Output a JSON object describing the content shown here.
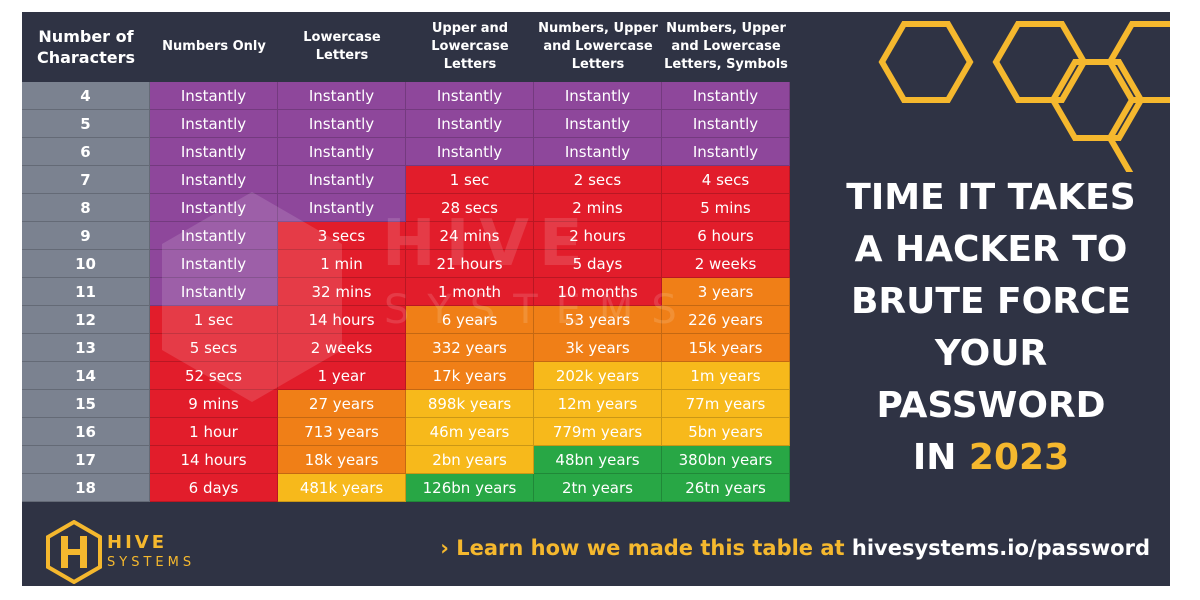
{
  "chart_data": {
    "type": "table",
    "title": "TIME IT TAKES A HACKER TO BRUTE FORCE YOUR PASSWORD IN 2023",
    "row_header": "Number of\nCharacters",
    "columns": [
      "Numbers Only",
      "Lowercase\nLetters",
      "Upper and\nLowercase\nLetters",
      "Numbers, Upper\nand Lowercase\nLetters",
      "Numbers, Upper\nand Lowercase\nLetters, Symbols"
    ],
    "rows": [
      {
        "label": "4",
        "values": [
          "Instantly",
          "Instantly",
          "Instantly",
          "Instantly",
          "Instantly"
        ],
        "levels": [
          "instant",
          "instant",
          "instant",
          "instant",
          "instant"
        ]
      },
      {
        "label": "5",
        "values": [
          "Instantly",
          "Instantly",
          "Instantly",
          "Instantly",
          "Instantly"
        ],
        "levels": [
          "instant",
          "instant",
          "instant",
          "instant",
          "instant"
        ]
      },
      {
        "label": "6",
        "values": [
          "Instantly",
          "Instantly",
          "Instantly",
          "Instantly",
          "Instantly"
        ],
        "levels": [
          "instant",
          "instant",
          "instant",
          "instant",
          "instant"
        ]
      },
      {
        "label": "7",
        "values": [
          "Instantly",
          "Instantly",
          "1 sec",
          "2 secs",
          "4 secs"
        ],
        "levels": [
          "instant",
          "instant",
          "red",
          "red",
          "red"
        ]
      },
      {
        "label": "8",
        "values": [
          "Instantly",
          "Instantly",
          "28 secs",
          "2 mins",
          "5 mins"
        ],
        "levels": [
          "instant",
          "instant",
          "red",
          "red",
          "red"
        ]
      },
      {
        "label": "9",
        "values": [
          "Instantly",
          "3 secs",
          "24 mins",
          "2 hours",
          "6 hours"
        ],
        "levels": [
          "instant",
          "red",
          "red",
          "red",
          "red"
        ]
      },
      {
        "label": "10",
        "values": [
          "Instantly",
          "1 min",
          "21 hours",
          "5 days",
          "2 weeks"
        ],
        "levels": [
          "instant",
          "red",
          "red",
          "red",
          "red"
        ]
      },
      {
        "label": "11",
        "values": [
          "Instantly",
          "32 mins",
          "1 month",
          "10 months",
          "3 years"
        ],
        "levels": [
          "instant",
          "red",
          "red",
          "red",
          "orange"
        ]
      },
      {
        "label": "12",
        "values": [
          "1 sec",
          "14 hours",
          "6 years",
          "53 years",
          "226 years"
        ],
        "levels": [
          "red",
          "red",
          "orange",
          "orange",
          "orange"
        ]
      },
      {
        "label": "13",
        "values": [
          "5 secs",
          "2 weeks",
          "332 years",
          "3k years",
          "15k years"
        ],
        "levels": [
          "red",
          "red",
          "orange",
          "orange",
          "orange"
        ]
      },
      {
        "label": "14",
        "values": [
          "52 secs",
          "1 year",
          "17k years",
          "202k years",
          "1m years"
        ],
        "levels": [
          "red",
          "red",
          "orange",
          "yellow",
          "yellow"
        ]
      },
      {
        "label": "15",
        "values": [
          "9 mins",
          "27 years",
          "898k years",
          "12m years",
          "77m years"
        ],
        "levels": [
          "red",
          "orange",
          "yellow",
          "yellow",
          "yellow"
        ]
      },
      {
        "label": "16",
        "values": [
          "1 hour",
          "713 years",
          "46m years",
          "779m years",
          "5bn years"
        ],
        "levels": [
          "red",
          "orange",
          "yellow",
          "yellow",
          "yellow"
        ]
      },
      {
        "label": "17",
        "values": [
          "14 hours",
          "18k years",
          "2bn years",
          "48bn years",
          "380bn years"
        ],
        "levels": [
          "red",
          "orange",
          "yellow",
          "green",
          "green"
        ]
      },
      {
        "label": "18",
        "values": [
          "6 days",
          "481k years",
          "126bn years",
          "2tn years",
          "26tn years"
        ],
        "levels": [
          "red",
          "yellow",
          "green",
          "green",
          "green"
        ]
      }
    ]
  },
  "level_colors": {
    "instant": "#8e479b",
    "red": "#e21d2b",
    "orange": "#f07f17",
    "yellow": "#f7b91b",
    "green": "#28a745"
  },
  "headline": {
    "lines": [
      "TIME IT TAKES",
      "A HACKER TO",
      "BRUTE FORCE",
      "YOUR",
      "PASSWORD"
    ],
    "last_prefix": "IN ",
    "year": "2023"
  },
  "footer": {
    "logo_icon": "hive-logo-icon",
    "logo_line1": "HIVE",
    "logo_line2": "SYSTEMS",
    "link_prefix": "› Learn how we made this table at ",
    "link_url": "hivesystems.io/password"
  },
  "watermark": {
    "line1": "HIVE",
    "line2": "SYSTEMS"
  },
  "colors": {
    "panel": "#2f3344",
    "row_label": "#7b8290",
    "accent": "#f5b82e"
  }
}
